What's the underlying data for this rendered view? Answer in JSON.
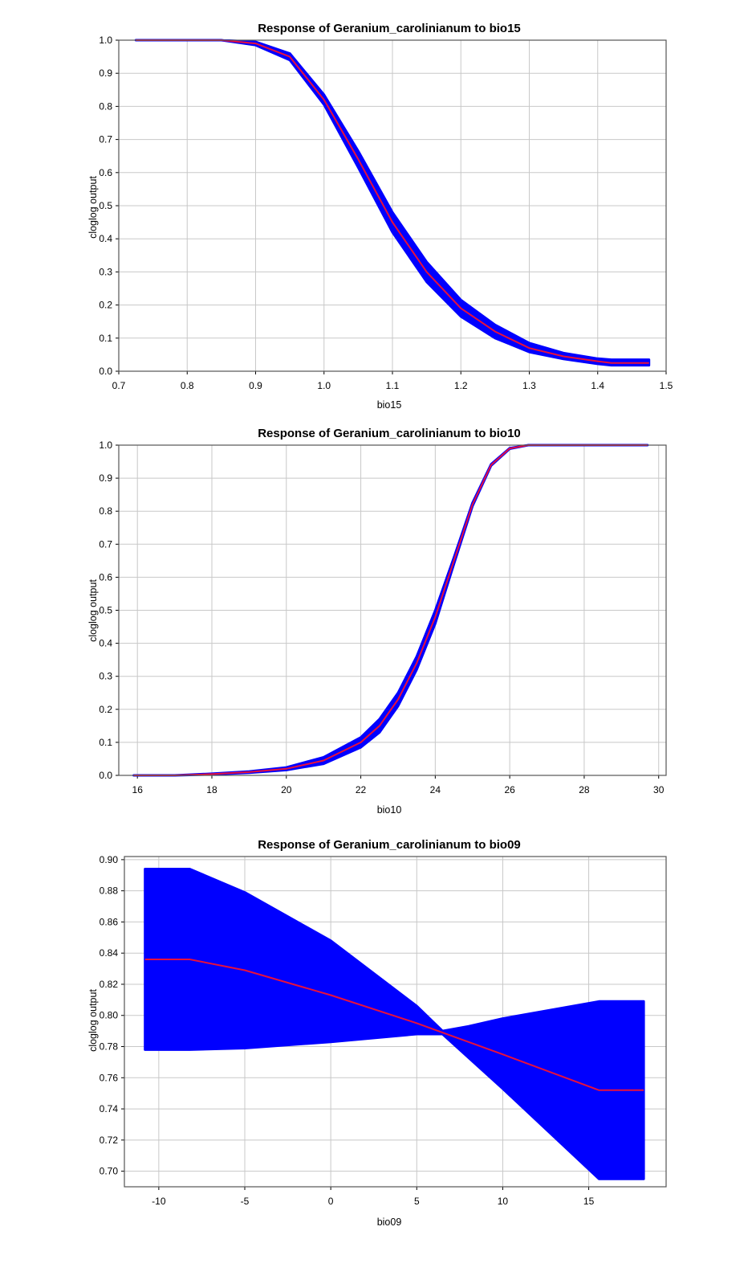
{
  "colors": {
    "band": "#0000ff",
    "mean": "#e8103c",
    "grid": "#c8c8c8"
  },
  "chart_data": [
    {
      "type": "line",
      "title": "Response of Geranium_carolinianum to bio15",
      "xlabel": "bio15",
      "ylabel": "cloglog output",
      "xlim": [
        0.7,
        1.5
      ],
      "ylim": [
        0.0,
        1.0
      ],
      "xticks": [
        "0.7",
        "0.8",
        "0.9",
        "1.0",
        "1.1",
        "1.2",
        "1.3",
        "1.4",
        "1.5"
      ],
      "yticks": [
        "0.0",
        "0.1",
        "0.2",
        "0.3",
        "0.4",
        "0.5",
        "0.6",
        "0.7",
        "0.8",
        "0.9",
        "1.0"
      ],
      "grid": true,
      "series": [
        {
          "role": "mean",
          "x": [
            0.725,
            0.8,
            0.85,
            0.9,
            0.95,
            1.0,
            1.05,
            1.1,
            1.15,
            1.2,
            1.25,
            1.3,
            1.35,
            1.4,
            1.42,
            1.475
          ],
          "y": [
            1.0,
            1.0,
            1.0,
            0.99,
            0.95,
            0.82,
            0.64,
            0.45,
            0.3,
            0.19,
            0.12,
            0.07,
            0.045,
            0.03,
            0.025,
            0.025
          ]
        },
        {
          "role": "upper",
          "x": [
            0.725,
            0.8,
            0.85,
            0.9,
            0.95,
            1.0,
            1.05,
            1.1,
            1.15,
            1.2,
            1.25,
            1.3,
            1.35,
            1.4,
            1.42,
            1.475
          ],
          "y": [
            1.0,
            1.0,
            1.0,
            0.995,
            0.96,
            0.835,
            0.665,
            0.48,
            0.33,
            0.215,
            0.14,
            0.085,
            0.055,
            0.038,
            0.035,
            0.035
          ]
        },
        {
          "role": "lower",
          "x": [
            0.725,
            0.8,
            0.85,
            0.9,
            0.95,
            1.0,
            1.05,
            1.1,
            1.15,
            1.2,
            1.25,
            1.3,
            1.35,
            1.4,
            1.42,
            1.475
          ],
          "y": [
            1.0,
            1.0,
            1.0,
            0.985,
            0.94,
            0.805,
            0.615,
            0.42,
            0.27,
            0.165,
            0.1,
            0.058,
            0.037,
            0.022,
            0.018,
            0.018
          ]
        }
      ]
    },
    {
      "type": "line",
      "title": "Response of Geranium_carolinianum to bio10",
      "xlabel": "bio10",
      "ylabel": "cloglog output",
      "xlim": [
        15.5,
        30.2
      ],
      "ylim": [
        0.0,
        1.0
      ],
      "xticks": [
        "16",
        "18",
        "20",
        "22",
        "24",
        "26",
        "28",
        "30"
      ],
      "yticks": [
        "0.0",
        "0.1",
        "0.2",
        "0.3",
        "0.4",
        "0.5",
        "0.6",
        "0.7",
        "0.8",
        "0.9",
        "1.0"
      ],
      "grid": true,
      "series": [
        {
          "role": "mean",
          "x": [
            15.9,
            17,
            18,
            19,
            20,
            21,
            22,
            22.5,
            23,
            23.5,
            24,
            24.5,
            25,
            25.5,
            26,
            26.5,
            27,
            28,
            29.7
          ],
          "y": [
            0.0,
            0.0,
            0.004,
            0.01,
            0.02,
            0.045,
            0.1,
            0.15,
            0.23,
            0.34,
            0.48,
            0.65,
            0.82,
            0.94,
            0.99,
            1.0,
            1.0,
            1.0,
            1.0
          ]
        },
        {
          "role": "upper",
          "x": [
            15.9,
            17,
            18,
            19,
            20,
            21,
            22,
            22.5,
            23,
            23.5,
            24,
            24.5,
            25,
            25.5,
            26,
            26.5,
            27,
            28,
            29.7
          ],
          "y": [
            0.0,
            0.0,
            0.005,
            0.012,
            0.024,
            0.055,
            0.115,
            0.17,
            0.25,
            0.36,
            0.5,
            0.66,
            0.825,
            0.942,
            0.991,
            1.0,
            1.0,
            1.0,
            1.0
          ]
        },
        {
          "role": "lower",
          "x": [
            15.9,
            17,
            18,
            19,
            20,
            21,
            22,
            22.5,
            23,
            23.5,
            24,
            24.5,
            25,
            25.5,
            26,
            26.5,
            27,
            28,
            29.7
          ],
          "y": [
            0.0,
            0.0,
            0.003,
            0.008,
            0.016,
            0.035,
            0.085,
            0.13,
            0.21,
            0.32,
            0.46,
            0.64,
            0.815,
            0.938,
            0.989,
            1.0,
            1.0,
            1.0,
            1.0
          ]
        }
      ]
    },
    {
      "type": "line",
      "title": "Response of Geranium_carolinianum to bio09",
      "xlabel": "bio09",
      "ylabel": "cloglog output",
      "xlim": [
        -12,
        19.5
      ],
      "ylim": [
        0.69,
        0.902
      ],
      "xticks": [
        "-10",
        "-5",
        "0",
        "5",
        "10",
        "15"
      ],
      "xtickvals": [
        -10,
        -5,
        0,
        5,
        10,
        15
      ],
      "yticks": [
        "0.70",
        "0.72",
        "0.74",
        "0.76",
        "0.78",
        "0.80",
        "0.82",
        "0.84",
        "0.86",
        "0.88",
        "0.90"
      ],
      "grid": true,
      "series": [
        {
          "role": "mean",
          "x": [
            -10.8,
            -8.2,
            -5,
            0,
            5,
            6.5,
            10,
            15.6,
            18.2
          ],
          "y": [
            0.836,
            0.836,
            0.829,
            0.813,
            0.795,
            0.789,
            0.775,
            0.752,
            0.752
          ]
        },
        {
          "role": "upper",
          "x": [
            -10.8,
            -8.2,
            -5,
            0,
            5,
            6.5,
            8,
            10,
            15.6,
            18.2
          ],
          "y": [
            0.894,
            0.894,
            0.879,
            0.848,
            0.806,
            0.79,
            0.793,
            0.798,
            0.809,
            0.809
          ]
        },
        {
          "role": "lower",
          "x": [
            -10.8,
            -8.2,
            -5,
            0,
            5,
            6.5,
            10,
            15.6,
            18.2
          ],
          "y": [
            0.778,
            0.778,
            0.779,
            0.783,
            0.788,
            0.788,
            0.753,
            0.695,
            0.695
          ]
        }
      ]
    }
  ]
}
